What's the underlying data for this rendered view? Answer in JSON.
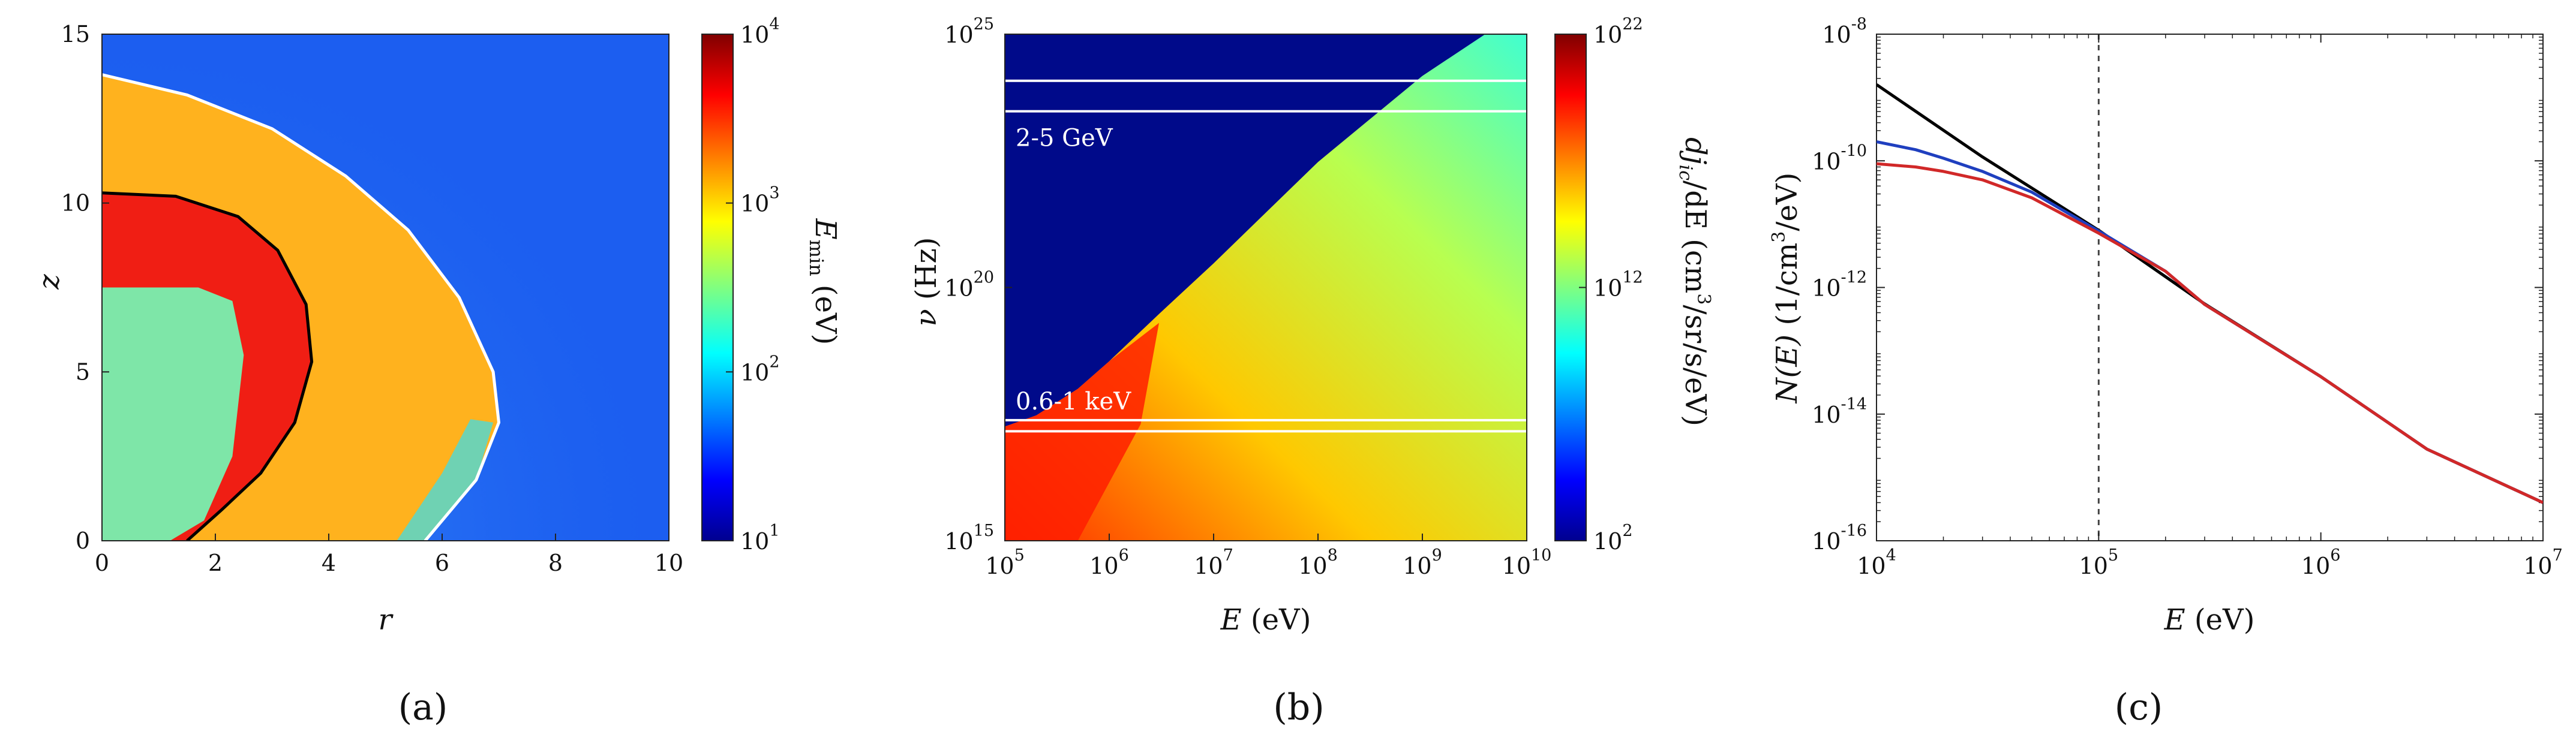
{
  "figure": {
    "captions": [
      "(a)",
      "(b)",
      "(c)"
    ]
  },
  "chart_data": [
    {
      "type": "heatmap",
      "panel": "(a)",
      "xlabel": "r",
      "ylabel": "z",
      "xlim": [
        0,
        10
      ],
      "ylim": [
        0,
        15
      ],
      "xticks": [
        "0",
        "2",
        "4",
        "6",
        "8",
        "10"
      ],
      "yticks": [
        "0",
        "5",
        "10",
        "15"
      ],
      "colorbar": {
        "label": "E_min (eV)",
        "label_main": "E",
        "label_sub": "min",
        "label_unit": "(eV)",
        "scale": "log",
        "range": [
          10,
          10000
        ],
        "tick_bases": [
          "10",
          "10",
          "10",
          "10"
        ],
        "tick_exps": [
          "1",
          "2",
          "3",
          "4"
        ],
        "colormap": "jet"
      },
      "contours": [
        {
          "color": "#000000",
          "points": [
            [
              0,
              10.3
            ],
            [
              1.3,
              10.2
            ],
            [
              2.4,
              9.6
            ],
            [
              3.1,
              8.6
            ],
            [
              3.6,
              7.0
            ],
            [
              3.7,
              5.3
            ],
            [
              3.4,
              3.5
            ],
            [
              2.8,
              2.0
            ],
            [
              2.1,
              0.9
            ],
            [
              1.5,
              0
            ]
          ]
        },
        {
          "color": "#ffffff",
          "points": [
            [
              0,
              13.8
            ],
            [
              1.5,
              13.2
            ],
            [
              3.0,
              12.2
            ],
            [
              4.3,
              10.8
            ],
            [
              5.4,
              9.2
            ],
            [
              6.3,
              7.2
            ],
            [
              6.9,
              5.0
            ],
            [
              7.0,
              3.5
            ],
            [
              6.6,
              1.8
            ],
            [
              5.7,
              0
            ]
          ]
        }
      ]
    },
    {
      "type": "heatmap",
      "panel": "(b)",
      "xlabel": "E (eV)",
      "xlabel_var": "E",
      "xlabel_unit": "(eV)",
      "ylabel": "ν (Hz)",
      "ylabel_var": "ν",
      "ylabel_unit": "(Hz)",
      "xscale": "log",
      "yscale": "log",
      "xlim": [
        100000,
        10000000000
      ],
      "ylim": [
        1000000000000000.0,
        1e+25
      ],
      "x_tick_exps": [
        "5",
        "6",
        "7",
        "8",
        "9",
        "10"
      ],
      "y_tick_exps": [
        "15",
        "20",
        "25"
      ],
      "tick_base": "10",
      "colorbar": {
        "label": "dj_ic/dE (cm^3/sr/s/eV)",
        "label_d": "dj",
        "label_sub": "ic",
        "label_mid": "/dE (cm",
        "label_sup": "3",
        "label_end": "/sr/s/eV)",
        "scale": "log",
        "range": [
          100,
          1e+22
        ],
        "tick_bases": [
          "10",
          "10",
          "10"
        ],
        "tick_exps": [
          "2",
          "12",
          "22"
        ],
        "colormap": "jet"
      },
      "bands": [
        {
          "label": "2-5 GeV",
          "y_low": 3e+23,
          "y_high": 1.2e+24
        },
        {
          "label": "0.6-1 keV",
          "y_low": 1.45e+17,
          "y_high": 2.4e+17
        }
      ]
    },
    {
      "type": "line",
      "panel": "(c)",
      "xlabel": "E (eV)",
      "xlabel_var": "E",
      "xlabel_unit": "(eV)",
      "ylabel": "N(E) (1/cm^3/eV)",
      "ylabel_func": "N(E)",
      "ylabel_unit_a": "(1/cm",
      "ylabel_unit_sup": "3",
      "ylabel_unit_b": "/eV)",
      "xscale": "log",
      "yscale": "log",
      "xlim": [
        10000,
        10000000
      ],
      "ylim": [
        1e-16,
        1e-08
      ],
      "x_tick_exps": [
        "4",
        "5",
        "6",
        "7"
      ],
      "y_tick_exps": [
        "-16",
        "-14",
        "-12",
        "-10",
        "-8"
      ],
      "tick_base": "10",
      "vline_x": 100000,
      "series": [
        {
          "color": "#000000",
          "x": [
            10000,
            30000,
            100000,
            300000,
            1000000,
            3000000,
            10000000
          ],
          "y": [
            1.6e-09,
            1.15e-10,
            8e-12,
            5.5e-13,
            3.9e-14,
            2.8e-15,
            4e-16
          ]
        },
        {
          "color": "#1f3fbf",
          "x": [
            10000,
            15000,
            20000,
            30000,
            50000,
            100000,
            200000,
            300000,
            1000000,
            3000000,
            10000000
          ],
          "y": [
            2e-10,
            1.5e-10,
            1.1e-10,
            6.8e-11,
            3.2e-11,
            7.8e-12,
            1.8e-12,
            5.4e-13,
            3.9e-14,
            2.8e-15,
            4e-16
          ]
        },
        {
          "color": "#d12828",
          "x": [
            10000,
            15000,
            20000,
            30000,
            50000,
            100000,
            200000,
            300000,
            1000000,
            3000000,
            10000000
          ],
          "y": [
            9e-11,
            8e-11,
            6.8e-11,
            5e-11,
            2.6e-11,
            7.2e-12,
            1.8e-12,
            5.4e-13,
            3.9e-14,
            2.8e-15,
            4e-16
          ]
        }
      ]
    }
  ]
}
